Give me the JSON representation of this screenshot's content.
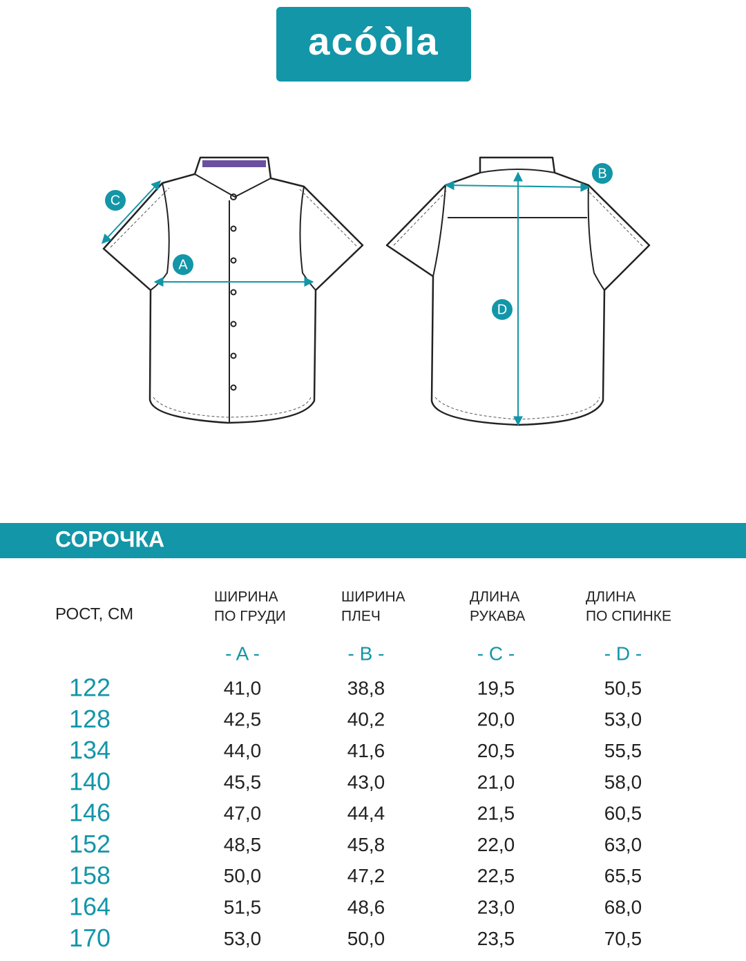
{
  "logo": "acóòla",
  "diagram": {
    "labels": [
      "A",
      "B",
      "C",
      "D"
    ]
  },
  "table": {
    "title": "СОРОЧКА",
    "height_header": "РОСТ, СМ",
    "columns": [
      [
        "ШИРИНА",
        "ПО ГРУДИ"
      ],
      [
        "ШИРИНА",
        "ПЛЕЧ"
      ],
      [
        "ДЛИНА",
        "РУКАВА"
      ],
      [
        "ДЛИНА",
        "ПО СПИНКЕ"
      ]
    ],
    "letters": [
      "- A -",
      "- B -",
      "- C -",
      "- D -"
    ],
    "rows": [
      [
        "122",
        "41,0",
        "38,8",
        "19,5",
        "50,5"
      ],
      [
        "128",
        "42,5",
        "40,2",
        "20,0",
        "53,0"
      ],
      [
        "134",
        "44,0",
        "41,6",
        "20,5",
        "55,5"
      ],
      [
        "140",
        "45,5",
        "43,0",
        "21,0",
        "58,0"
      ],
      [
        "146",
        "47,0",
        "44,4",
        "21,5",
        "60,5"
      ],
      [
        "152",
        "48,5",
        "45,8",
        "22,0",
        "63,0"
      ],
      [
        "158",
        "50,0",
        "47,2",
        "22,5",
        "65,5"
      ],
      [
        "164",
        "51,5",
        "48,6",
        "23,0",
        "68,0"
      ],
      [
        "170",
        "53,0",
        "50,0",
        "23,5",
        "70,5"
      ]
    ]
  }
}
